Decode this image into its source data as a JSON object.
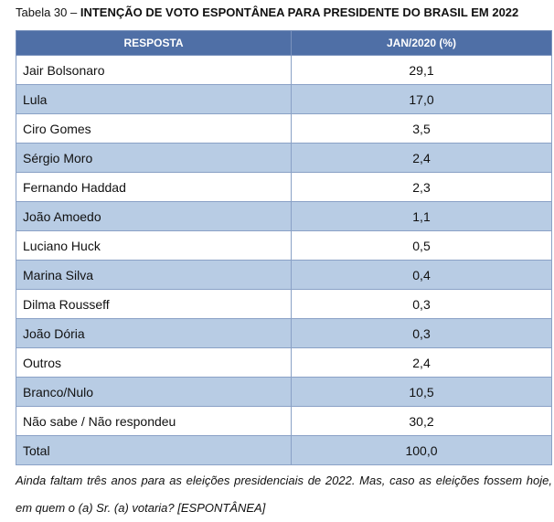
{
  "title": {
    "label": "Tabela 30 –",
    "text": "INTENÇÃO DE VOTO ESPONTÂNEA PARA PRESIDENTE DO BRASIL EM 2022"
  },
  "table": {
    "header": [
      "RESPOSTA",
      "JAN/2020 (%)"
    ],
    "rows": [
      [
        "Jair Bolsonaro",
        "29,1"
      ],
      [
        "Lula",
        "17,0"
      ],
      [
        "Ciro Gomes",
        "3,5"
      ],
      [
        "Sérgio Moro",
        "2,4"
      ],
      [
        "Fernando Haddad",
        "2,3"
      ],
      [
        "João Amoedo",
        "1,1"
      ],
      [
        "Luciano Huck",
        "0,5"
      ],
      [
        "Marina Silva",
        "0,4"
      ],
      [
        "Dilma Rousseff",
        "0,3"
      ],
      [
        "João Dória",
        "0,3"
      ],
      [
        "Outros",
        "2,4"
      ],
      [
        "Branco/Nulo",
        "10,5"
      ],
      [
        "Não sabe / Não respondeu",
        "30,2"
      ],
      [
        "Total",
        "100,0"
      ]
    ]
  },
  "footnote": "Ainda faltam três anos para as eleições presidenciais de 2022. Mas, caso as eleições fossem hoje, em quem o (a) Sr. (a) votaria? [ESPONTÂNEA]"
}
